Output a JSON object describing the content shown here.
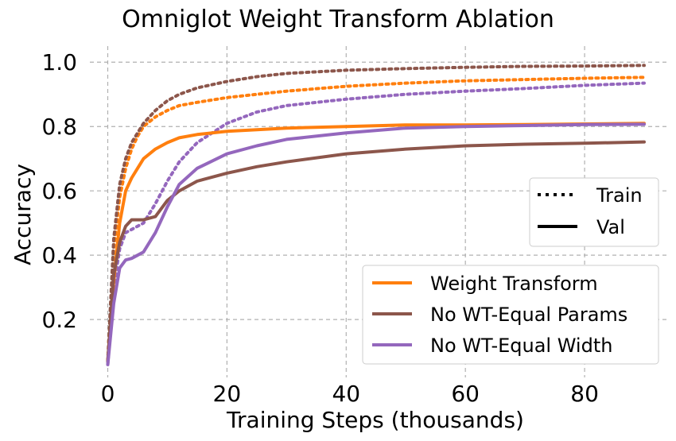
{
  "chart_data": {
    "type": "line",
    "title": "Omniglot Weight Transform Ablation",
    "xlabel": "Training Steps (thousands)",
    "ylabel": "Accuracy",
    "xlim": [
      -3,
      94
    ],
    "ylim": [
      0.02,
      1.05
    ],
    "xticks": [
      0,
      20,
      40,
      60,
      80
    ],
    "yticks": [
      0.2,
      0.4,
      0.6,
      0.8,
      1.0
    ],
    "ytick_labels": [
      "0.2",
      "0.4",
      "0.6",
      "0.8",
      "1.0"
    ],
    "grid": true,
    "style_legend": {
      "placement": "right",
      "entries": [
        {
          "label": "Train",
          "style": "dotted"
        },
        {
          "label": "Val",
          "style": "solid"
        }
      ]
    },
    "series_legend": {
      "placement": "bottom-right",
      "entries": [
        {
          "label": "Weight Transform",
          "color": "#ff7f0e"
        },
        {
          "label": "No WT-Equal Params",
          "color": "#8c564b"
        },
        {
          "label": "No WT-Equal Width",
          "color": "#9467bd"
        }
      ]
    },
    "series": [
      {
        "name": "Weight Transform",
        "split": "Train",
        "color": "#ff7f0e",
        "style": "dotted",
        "x": [
          0,
          1,
          2,
          3,
          4,
          5,
          6,
          8,
          10,
          12,
          15,
          20,
          25,
          30,
          40,
          50,
          60,
          70,
          80,
          90
        ],
        "y": [
          0.07,
          0.42,
          0.58,
          0.67,
          0.73,
          0.77,
          0.8,
          0.83,
          0.85,
          0.865,
          0.875,
          0.89,
          0.9,
          0.91,
          0.925,
          0.935,
          0.942,
          0.946,
          0.95,
          0.953
        ]
      },
      {
        "name": "No WT-Equal Params",
        "split": "Train",
        "color": "#8c564b",
        "style": "dotted",
        "x": [
          0,
          1,
          2,
          3,
          4,
          5,
          6,
          8,
          10,
          12,
          15,
          20,
          25,
          30,
          40,
          50,
          60,
          70,
          80,
          90
        ],
        "y": [
          0.07,
          0.45,
          0.62,
          0.7,
          0.75,
          0.78,
          0.81,
          0.85,
          0.88,
          0.9,
          0.92,
          0.94,
          0.955,
          0.965,
          0.975,
          0.98,
          0.984,
          0.987,
          0.988,
          0.99
        ]
      },
      {
        "name": "No WT-Equal Width",
        "split": "Train",
        "color": "#9467bd",
        "style": "dotted",
        "x": [
          0,
          1,
          2,
          3,
          4,
          5,
          6,
          8,
          10,
          12,
          15,
          20,
          25,
          30,
          40,
          50,
          60,
          70,
          80,
          90
        ],
        "y": [
          0.06,
          0.3,
          0.42,
          0.47,
          0.48,
          0.49,
          0.5,
          0.56,
          0.63,
          0.69,
          0.75,
          0.81,
          0.845,
          0.865,
          0.885,
          0.9,
          0.91,
          0.918,
          0.928,
          0.935
        ]
      },
      {
        "name": "Weight Transform",
        "split": "Val",
        "color": "#ff7f0e",
        "style": "solid",
        "x": [
          0,
          1,
          2,
          3,
          4,
          5,
          6,
          8,
          10,
          12,
          15,
          20,
          25,
          30,
          40,
          50,
          60,
          70,
          80,
          90
        ],
        "y": [
          0.07,
          0.32,
          0.5,
          0.6,
          0.64,
          0.67,
          0.7,
          0.73,
          0.75,
          0.765,
          0.775,
          0.785,
          0.79,
          0.795,
          0.8,
          0.805,
          0.805,
          0.806,
          0.808,
          0.81
        ]
      },
      {
        "name": "No WT-Equal Params",
        "split": "Val",
        "color": "#8c564b",
        "style": "solid",
        "x": [
          0,
          1,
          2,
          3,
          4,
          5,
          6,
          8,
          10,
          12,
          15,
          20,
          25,
          30,
          40,
          50,
          60,
          70,
          80,
          90
        ],
        "y": [
          0.07,
          0.34,
          0.44,
          0.49,
          0.51,
          0.51,
          0.51,
          0.52,
          0.57,
          0.6,
          0.63,
          0.655,
          0.675,
          0.69,
          0.715,
          0.73,
          0.74,
          0.745,
          0.748,
          0.752
        ]
      },
      {
        "name": "No WT-Equal Width",
        "split": "Val",
        "color": "#9467bd",
        "style": "solid",
        "x": [
          0,
          1,
          2,
          3,
          4,
          5,
          6,
          8,
          10,
          12,
          15,
          20,
          25,
          30,
          40,
          50,
          60,
          70,
          80,
          90
        ],
        "y": [
          0.06,
          0.25,
          0.36,
          0.385,
          0.39,
          0.4,
          0.41,
          0.47,
          0.55,
          0.62,
          0.67,
          0.715,
          0.74,
          0.76,
          0.78,
          0.795,
          0.8,
          0.803,
          0.806,
          0.807
        ]
      }
    ]
  }
}
